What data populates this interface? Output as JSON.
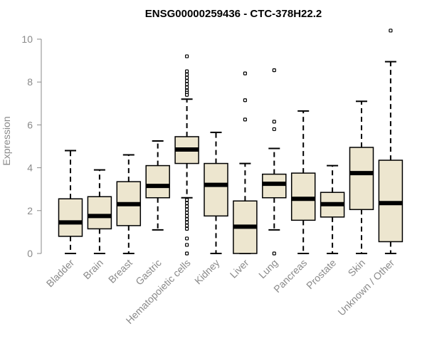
{
  "chart_data": {
    "type": "box",
    "title": "ENSG00000259436 - CTC-378H22.2",
    "ylabel": "Expression",
    "ylim": [
      0,
      10.5
    ],
    "yticks": [
      0,
      2,
      4,
      6,
      8,
      10
    ],
    "grid": false,
    "colors": {
      "box_fill": "#ede6cf",
      "stroke": "#000000",
      "axis": "#8a8a8a"
    },
    "categories": [
      "Bladder",
      "Brain",
      "Breast",
      "Gastric",
      "Hematopoietic cells",
      "Kidney",
      "Liver",
      "Lung",
      "Pancreas",
      "Prostate",
      "Skin",
      "Unknown / Other"
    ],
    "boxes": [
      {
        "category": "Bladder",
        "whisker_low": 0,
        "q1": 0.8,
        "median": 1.45,
        "q3": 2.55,
        "whisker_high": 4.8,
        "outliers": []
      },
      {
        "category": "Brain",
        "whisker_low": 0,
        "q1": 1.15,
        "median": 1.75,
        "q3": 2.65,
        "whisker_high": 3.9,
        "outliers": []
      },
      {
        "category": "Breast",
        "whisker_low": 0,
        "q1": 1.3,
        "median": 2.3,
        "q3": 3.35,
        "whisker_high": 4.6,
        "outliers": []
      },
      {
        "category": "Gastric",
        "whisker_low": 1.1,
        "q1": 2.6,
        "median": 3.15,
        "q3": 4.1,
        "whisker_high": 5.25,
        "outliers": []
      },
      {
        "category": "Hematopoietic cells",
        "whisker_low": 2.6,
        "q1": 4.2,
        "median": 4.85,
        "q3": 5.45,
        "whisker_high": 7.2,
        "outliers": [
          9.2,
          8.5,
          8.35,
          8.2,
          8.05,
          7.9,
          7.75,
          7.6,
          7.5,
          7.4,
          2.5,
          2.35,
          2.2,
          2.05,
          1.9,
          1.75,
          1.6,
          1.45,
          1.3,
          1.15,
          0.7,
          0.4,
          0
        ]
      },
      {
        "category": "Kidney",
        "whisker_low": 0,
        "q1": 1.75,
        "median": 3.2,
        "q3": 4.2,
        "whisker_high": 5.65,
        "outliers": []
      },
      {
        "category": "Liver",
        "whisker_low": 0,
        "q1": 0,
        "median": 1.25,
        "q3": 2.45,
        "whisker_high": 4.2,
        "outliers": [
          8.4,
          7.15,
          6.25
        ]
      },
      {
        "category": "Lung",
        "whisker_low": 1.1,
        "q1": 2.6,
        "median": 3.25,
        "q3": 3.7,
        "whisker_high": 4.9,
        "outliers": [
          8.55,
          6.15,
          5.8,
          0
        ]
      },
      {
        "category": "Pancreas",
        "whisker_low": 0,
        "q1": 1.55,
        "median": 2.55,
        "q3": 3.75,
        "whisker_high": 6.65,
        "outliers": []
      },
      {
        "category": "Prostate",
        "whisker_low": 0,
        "q1": 1.7,
        "median": 2.3,
        "q3": 2.85,
        "whisker_high": 4.1,
        "outliers": []
      },
      {
        "category": "Skin",
        "whisker_low": 0,
        "q1": 2.05,
        "median": 3.75,
        "q3": 4.95,
        "whisker_high": 7.1,
        "outliers": []
      },
      {
        "category": "Unknown / Other",
        "whisker_low": 0,
        "q1": 0.55,
        "median": 2.35,
        "q3": 4.35,
        "whisker_high": 8.95,
        "outliers": [
          10.4
        ]
      }
    ]
  }
}
